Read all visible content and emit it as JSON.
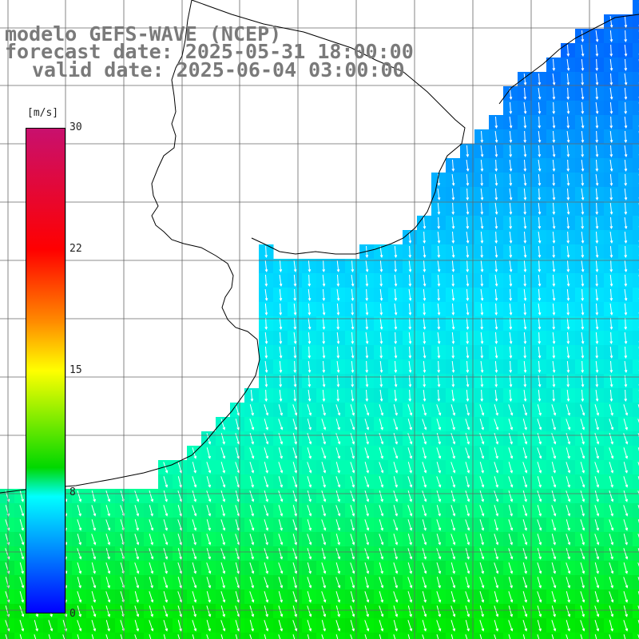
{
  "header": {
    "line1": "modelo GEFS-WAVE (NCEP)",
    "line2": "forecast date: 2025-05-31 18:00:00",
    "line3": "valid date: 2025-06-04 03:00:00"
  },
  "colorbar": {
    "unit": "[m/s]",
    "ticks": [
      "30",
      "22",
      "15",
      "8",
      "0"
    ],
    "tick_values": [
      30,
      22,
      15,
      8,
      0
    ],
    "colors": [
      "#c8106e",
      "#ff0000",
      "#ff8c00",
      "#ffff00",
      "#00d800",
      "#00ffff",
      "#0080ff",
      "#0000ff"
    ]
  },
  "map": {
    "variable": "wind speed",
    "arrow_color": "#ffffff",
    "grid_color": "#666666",
    "land_color": "#ffffff",
    "coast_color": "#000000"
  }
}
